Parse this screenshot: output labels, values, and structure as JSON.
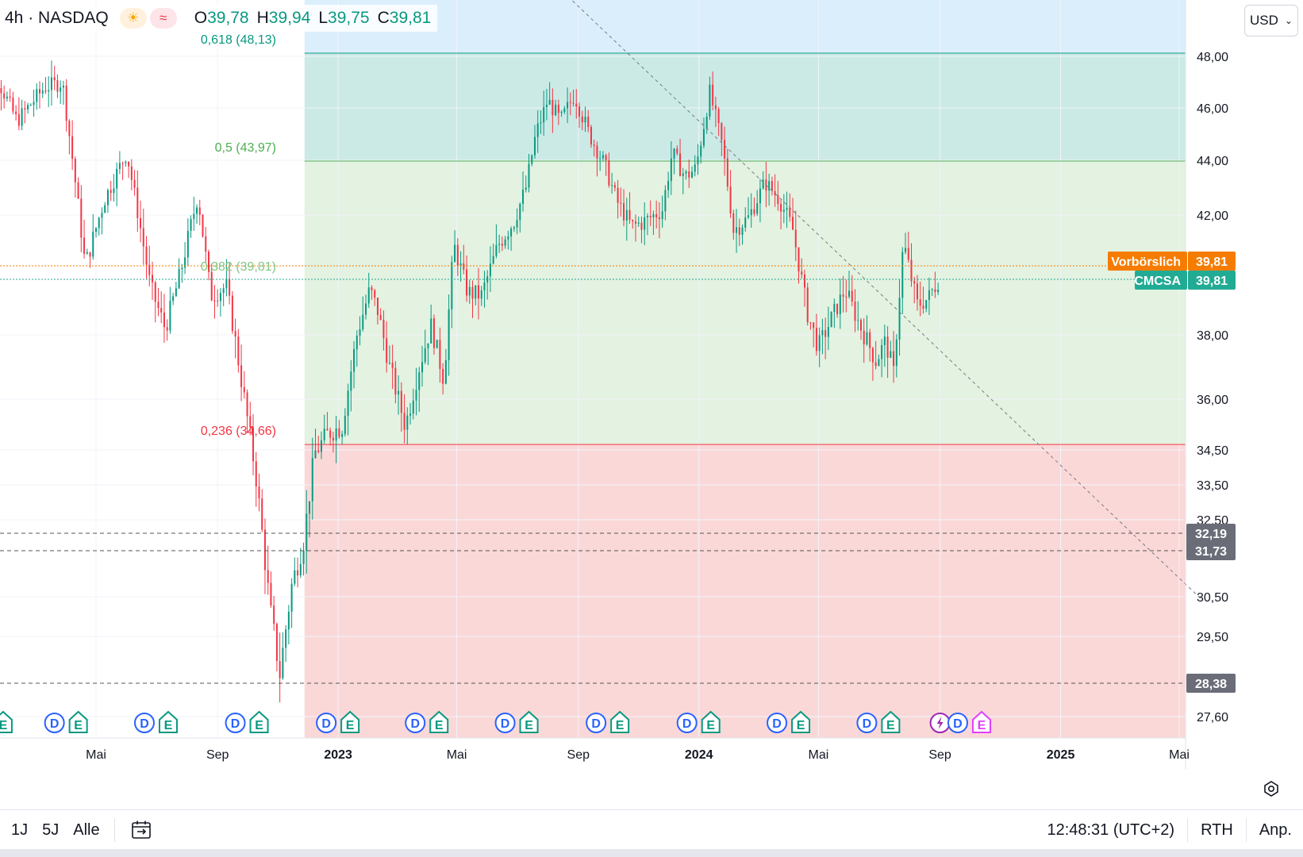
{
  "legend": {
    "title": "4h · NASDAQ",
    "ohlc": [
      {
        "key": "O",
        "value": "39,78"
      },
      {
        "key": "H",
        "value": "39,94"
      },
      {
        "key": "L",
        "value": "39,75"
      },
      {
        "key": "C",
        "value": "39,81"
      }
    ],
    "icons": [
      "sun-icon",
      "wave-icon"
    ]
  },
  "currency": {
    "label": "USD"
  },
  "price_labels": {
    "premarket": {
      "name": "Vorbörslich",
      "value": "39,81",
      "color": "#f57c00"
    },
    "symbol": {
      "name": "CMCSA",
      "value": "39,81",
      "color": "#22ab94"
    },
    "levels": [
      {
        "value": "32,19",
        "price": 32.19
      },
      {
        "value": "31,73",
        "price": 31.73
      },
      {
        "value": "28,38",
        "price": 28.38
      }
    ]
  },
  "bottom_bar": {
    "ranges": [
      "1J",
      "5J",
      "Alle"
    ],
    "time": "12:48:31 (UTC+2)",
    "session": "RTH",
    "adjust": "Anp."
  },
  "colors": {
    "up": "#089981",
    "down": "#f23645",
    "zone_top": "#dbeefc",
    "zone_0618": "#cbeae6",
    "zone_05": "#e3f2e1",
    "zone_0236": "#fbd8d8"
  },
  "chart_data": {
    "type": "candlestick",
    "symbol": "CMCSA",
    "interval": "4h",
    "exchange": "NASDAQ",
    "y_ticks": [
      "48,00",
      "46,00",
      "44,00",
      "42,00",
      "38,00",
      "36,00",
      "34,50",
      "33,50",
      "32,50",
      "30,50",
      "29,50",
      "27,60"
    ],
    "y_tick_values": [
      48.0,
      46.0,
      44.0,
      42.0,
      38.0,
      36.0,
      34.5,
      33.5,
      32.5,
      30.5,
      29.5,
      27.6
    ],
    "x_ticks": [
      "Mai",
      "Sep",
      "2023",
      "Mai",
      "Sep",
      "2024",
      "Mai",
      "Sep",
      "2025",
      "Mai"
    ],
    "x_tick_dates": [
      "2022-05-01",
      "2022-09-01",
      "2023-01-01",
      "2023-05-01",
      "2023-09-01",
      "2024-01-01",
      "2024-05-01",
      "2024-09-01",
      "2025-01-01",
      "2025-05-01"
    ],
    "fib_levels": [
      {
        "label": "0,618 (48,13)",
        "ratio": 0.618,
        "price": 48.13,
        "color": "#089981"
      },
      {
        "label": "0,5 (43,97)",
        "ratio": 0.5,
        "price": 43.97,
        "color": "#4caf50"
      },
      {
        "label": "0,382 (39,81)",
        "ratio": 0.382,
        "price": 39.81,
        "color": "#81c784"
      },
      {
        "label": "0,236 (34,66)",
        "ratio": 0.236,
        "price": 34.66,
        "color": "#f23645"
      }
    ],
    "fib_start_date": "2022-11-28",
    "trend_line": {
      "from": {
        "date": "2023-07-20",
        "price": 51.5
      },
      "to": {
        "date": "2025-05-25",
        "price": 30.4
      }
    },
    "events": [
      {
        "date": "2022-01-27",
        "types": [
          "E"
        ]
      },
      {
        "date": "2022-04-01",
        "types": [
          "D",
          "E"
        ]
      },
      {
        "date": "2022-07-01",
        "types": [
          "D",
          "E"
        ]
      },
      {
        "date": "2022-10-01",
        "types": [
          "D",
          "E"
        ]
      },
      {
        "date": "2023-01-01",
        "types": [
          "D",
          "E"
        ]
      },
      {
        "date": "2023-04-01",
        "types": [
          "D",
          "E"
        ]
      },
      {
        "date": "2023-07-01",
        "types": [
          "D",
          "E"
        ]
      },
      {
        "date": "2023-10-01",
        "types": [
          "D",
          "E"
        ]
      },
      {
        "date": "2024-01-01",
        "types": [
          "D",
          "E"
        ]
      },
      {
        "date": "2024-04-01",
        "types": [
          "D",
          "E"
        ]
      },
      {
        "date": "2024-07-01",
        "types": [
          "D",
          "E"
        ]
      },
      {
        "date": "2024-09-01",
        "types": [
          "S"
        ]
      },
      {
        "date": "2024-10-01",
        "types": [
          "D",
          "E"
        ]
      }
    ],
    "price_path": [
      {
        "date": "2022-01-01",
        "price": 48.8
      },
      {
        "date": "2022-02-10",
        "price": 45.5
      },
      {
        "date": "2022-03-10",
        "price": 46.8
      },
      {
        "date": "2022-03-28",
        "price": 47.0
      },
      {
        "date": "2022-04-20",
        "price": 40.3
      },
      {
        "date": "2022-05-10",
        "price": 42.6
      },
      {
        "date": "2022-06-01",
        "price": 44.3
      },
      {
        "date": "2022-06-25",
        "price": 39.6
      },
      {
        "date": "2022-07-10",
        "price": 38.2
      },
      {
        "date": "2022-07-25",
        "price": 40.0
      },
      {
        "date": "2022-08-12",
        "price": 42.7
      },
      {
        "date": "2022-08-25",
        "price": 39.3
      },
      {
        "date": "2022-09-10",
        "price": 39.6
      },
      {
        "date": "2022-09-25",
        "price": 36.6
      },
      {
        "date": "2022-10-10",
        "price": 33.7
      },
      {
        "date": "2022-10-24",
        "price": 30.2
      },
      {
        "date": "2022-11-03",
        "price": 28.6
      },
      {
        "date": "2022-11-15",
        "price": 30.8
      },
      {
        "date": "2022-11-28",
        "price": 32.1
      },
      {
        "date": "2022-12-08",
        "price": 34.4
      },
      {
        "date": "2022-12-22",
        "price": 35.0
      },
      {
        "date": "2023-01-05",
        "price": 35.2
      },
      {
        "date": "2023-01-20",
        "price": 38.0
      },
      {
        "date": "2023-02-02",
        "price": 39.5
      },
      {
        "date": "2023-02-10",
        "price": 38.8
      },
      {
        "date": "2023-02-22",
        "price": 37.0
      },
      {
        "date": "2023-03-10",
        "price": 35.2
      },
      {
        "date": "2023-03-24",
        "price": 37.0
      },
      {
        "date": "2023-04-05",
        "price": 38.3
      },
      {
        "date": "2023-04-18",
        "price": 36.6
      },
      {
        "date": "2023-04-28",
        "price": 41.0
      },
      {
        "date": "2023-05-12",
        "price": 39.4
      },
      {
        "date": "2023-05-26",
        "price": 39.3
      },
      {
        "date": "2023-06-12",
        "price": 41.0
      },
      {
        "date": "2023-06-28",
        "price": 41.8
      },
      {
        "date": "2023-07-10",
        "price": 43.0
      },
      {
        "date": "2023-07-20",
        "price": 45.0
      },
      {
        "date": "2023-08-01",
        "price": 46.3
      },
      {
        "date": "2023-08-14",
        "price": 45.5
      },
      {
        "date": "2023-08-28",
        "price": 46.5
      },
      {
        "date": "2023-09-12",
        "price": 45.0
      },
      {
        "date": "2023-09-28",
        "price": 43.8
      },
      {
        "date": "2023-10-10",
        "price": 42.5
      },
      {
        "date": "2023-10-25",
        "price": 41.6
      },
      {
        "date": "2023-11-08",
        "price": 41.8
      },
      {
        "date": "2023-11-25",
        "price": 42.2
      },
      {
        "date": "2023-12-05",
        "price": 44.3
      },
      {
        "date": "2023-12-18",
        "price": 43.4
      },
      {
        "date": "2023-12-29",
        "price": 43.7
      },
      {
        "date": "2024-01-12",
        "price": 46.6
      },
      {
        "date": "2024-01-25",
        "price": 44.5
      },
      {
        "date": "2024-02-05",
        "price": 41.5
      },
      {
        "date": "2024-02-20",
        "price": 41.9
      },
      {
        "date": "2024-03-08",
        "price": 43.2
      },
      {
        "date": "2024-03-22",
        "price": 42.6
      },
      {
        "date": "2024-04-05",
        "price": 41.5
      },
      {
        "date": "2024-04-20",
        "price": 38.7
      },
      {
        "date": "2024-05-01",
        "price": 37.6
      },
      {
        "date": "2024-05-15",
        "price": 38.6
      },
      {
        "date": "2024-05-28",
        "price": 39.5
      },
      {
        "date": "2024-06-12",
        "price": 38.3
      },
      {
        "date": "2024-06-28",
        "price": 37.2
      },
      {
        "date": "2024-07-08",
        "price": 37.8
      },
      {
        "date": "2024-07-16",
        "price": 36.8
      },
      {
        "date": "2024-07-26",
        "price": 41.1
      },
      {
        "date": "2024-08-02",
        "price": 40.0
      },
      {
        "date": "2024-08-09",
        "price": 39.0
      },
      {
        "date": "2024-08-20",
        "price": 39.2
      },
      {
        "date": "2024-08-30",
        "price": 39.81
      }
    ]
  }
}
